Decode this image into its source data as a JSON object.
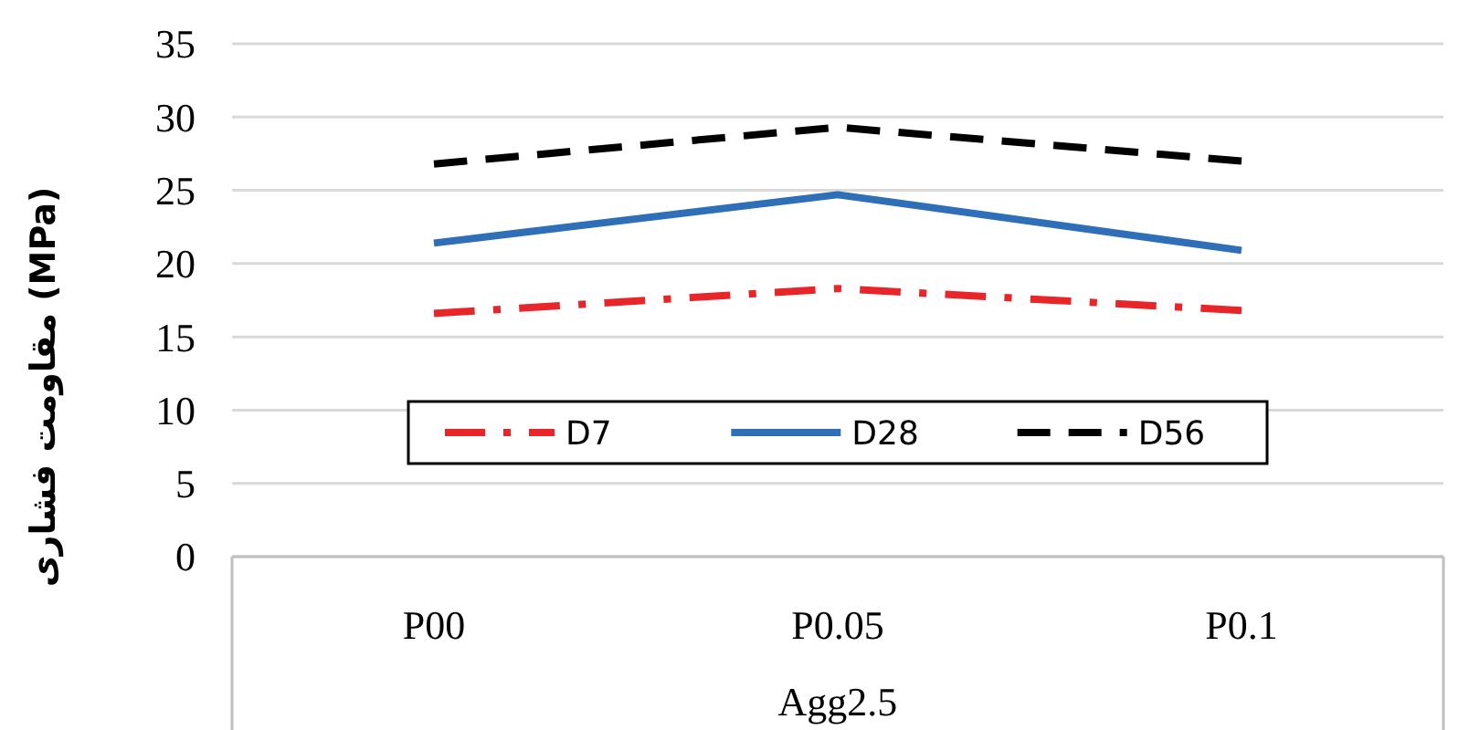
{
  "chart_data": {
    "type": "line",
    "xlabel": "Agg2.5",
    "ylabel": "مقاومت فشاری (MPa)",
    "categories": [
      "P00",
      "P0.05",
      "P0.1"
    ],
    "ylim": [
      0,
      35
    ],
    "yticks": [
      0,
      5,
      10,
      15,
      20,
      25,
      30,
      35
    ],
    "grid": "y",
    "legend": "bottom",
    "marker": "none",
    "series": [
      {
        "name": "D7",
        "color": "#e8262a",
        "values": [
          16.6,
          18.3,
          16.8
        ],
        "line_style": "dashdot"
      },
      {
        "name": "D28",
        "color": "#2e6fb7",
        "values": [
          21.4,
          24.7,
          20.9
        ],
        "line_style": "solid"
      },
      {
        "name": "D56",
        "color": "#000000",
        "values": [
          26.8,
          29.3,
          27.0
        ],
        "line_style": "dashed"
      }
    ]
  }
}
